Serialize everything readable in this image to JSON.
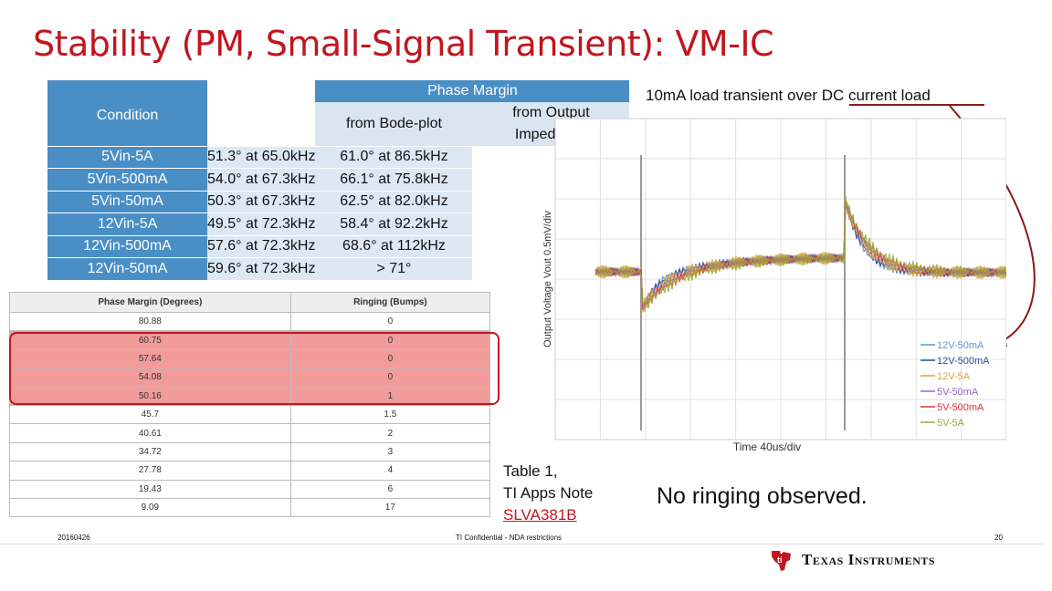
{
  "title": "Stability (PM, Small-Signal Transient): VM-IC",
  "pm_table": {
    "condition_header": "Condition",
    "phase_margin_header": "Phase Margin",
    "col_bode": "from Bode-plot",
    "col_output_line1": "from Output",
    "col_output_line2": "Impedance",
    "rows": [
      {
        "condition": "5Vin-5A",
        "bode": "51.3° at 65.0kHz",
        "output": "61.0° at 86.5kHz"
      },
      {
        "condition": "5Vin-500mA",
        "bode": "54.0° at 67.3kHz",
        "output": "66.1° at 75.8kHz"
      },
      {
        "condition": "5Vin-50mA",
        "bode": "50.3° at 67.3kHz",
        "output": "62.5° at 82.0kHz"
      },
      {
        "condition": "12Vin-5A",
        "bode": "49.5° at 72.3kHz",
        "output": "58.4° at 92.2kHz"
      },
      {
        "condition": "12Vin-500mA",
        "bode": "57.6° at 72.3kHz",
        "output": "68.6° at 112kHz"
      },
      {
        "condition": "12Vin-50mA",
        "bode": "59.6° at 72.3kHz",
        "output": "> 71°"
      }
    ]
  },
  "ringing_table": {
    "headers": [
      "Phase Margin (Degrees)",
      "Ringing (Bumps)"
    ],
    "rows": [
      [
        "80.88",
        "0"
      ],
      [
        "60.75",
        "0"
      ],
      [
        "57.64",
        "0"
      ],
      [
        "54.08",
        "0"
      ],
      [
        "50.16",
        "1"
      ],
      [
        "45.7",
        "1.5"
      ],
      [
        "40.61",
        "2"
      ],
      [
        "34.72",
        "3"
      ],
      [
        "27.78",
        "4"
      ],
      [
        "19.43",
        "6"
      ],
      [
        "9.09",
        "17"
      ]
    ]
  },
  "caption": {
    "line1": "Table 1,",
    "line2": "TI Apps Note",
    "link": "SLVA381B"
  },
  "transient_title": "10mA load transient over DC current load",
  "no_ringing": "No ringing observed.",
  "footer": {
    "date": "20160426",
    "confidential": "TI Confidential - NDA restrictions",
    "page": "20",
    "brand": "Texas Instruments"
  },
  "colors": {
    "title": "#c0161f",
    "header_blue": "#4a8ec6",
    "highlight": "#f29b9b",
    "arrow": "#8b1a1a"
  },
  "chart_data": {
    "type": "line",
    "title": "",
    "xlabel": "Time  40us/div",
    "ylabel": "Output Voltage  Vout  0.5mV/div",
    "grid": true,
    "legend_position": "bottom-right",
    "series": [
      {
        "name": "12V-50mA",
        "color": "#6b8fc9"
      },
      {
        "name": "12V-500mA",
        "color": "#2b4fa0"
      },
      {
        "name": "12V-5A",
        "color": "#e6a13a"
      },
      {
        "name": "5V-50mA",
        "color": "#8f6fc4"
      },
      {
        "name": "5V-500mA",
        "color": "#d8343a"
      },
      {
        "name": "5V-5A",
        "color": "#9aa83a"
      }
    ]
  }
}
